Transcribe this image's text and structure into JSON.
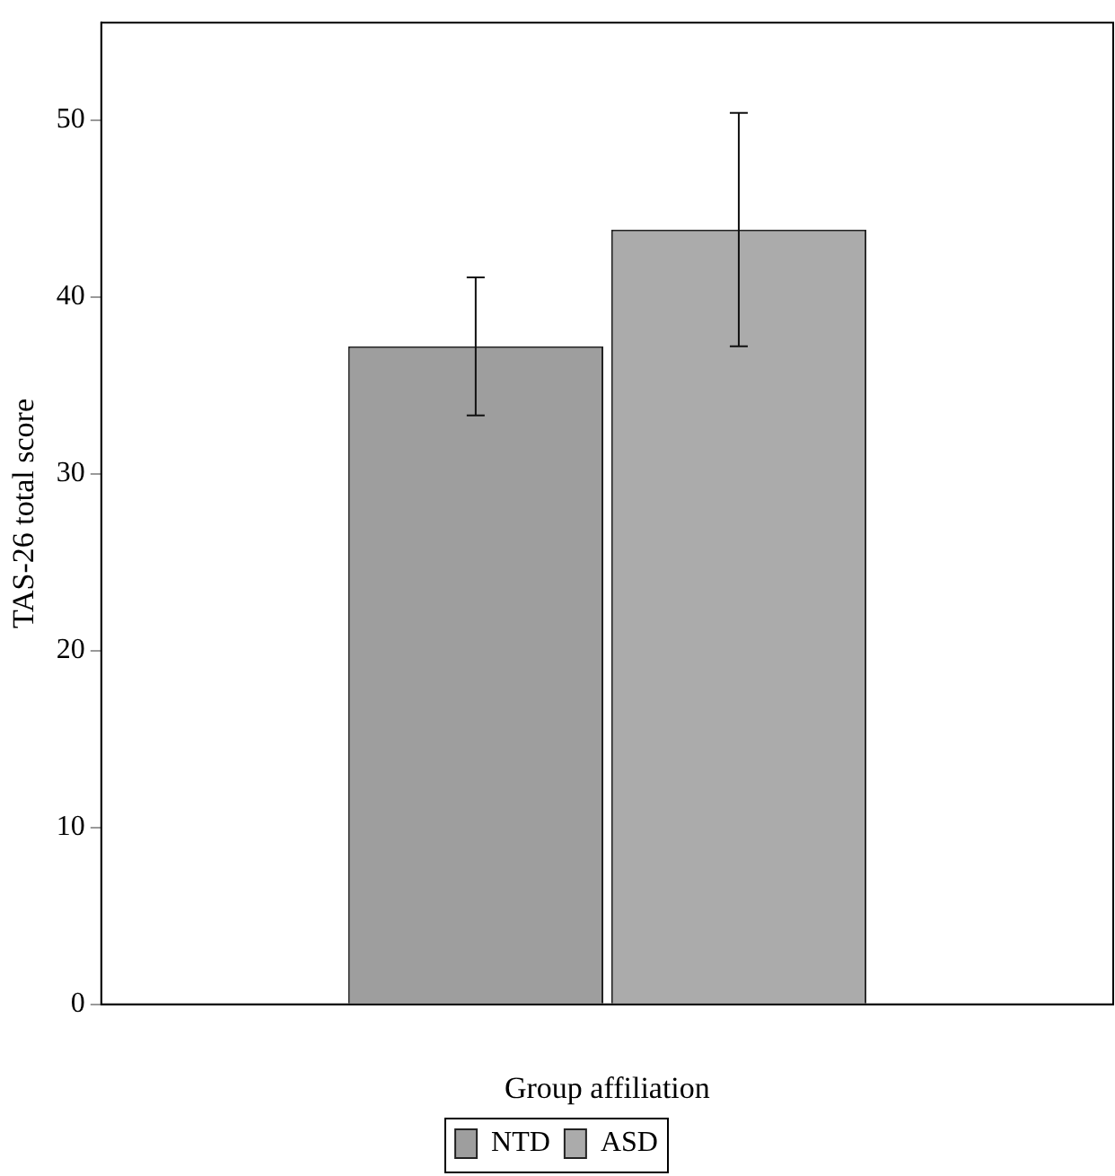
{
  "chart_data": {
    "type": "bar",
    "xlabel": "Group affiliation",
    "ylabel": "TAS-26 total score",
    "categories": [
      null
    ],
    "series": [
      {
        "name": "NTD",
        "color": "#9e9e9e",
        "values": [
          37.2
        ],
        "errors": [
          3.9
        ]
      },
      {
        "name": "ASD",
        "color": "#ababab",
        "values": [
          43.8
        ],
        "errors": [
          6.6
        ]
      }
    ],
    "ylim": [
      0,
      55.5
    ],
    "yticks": [
      0,
      10,
      20,
      30,
      40,
      50
    ],
    "grid": false,
    "legend": "bottom"
  }
}
